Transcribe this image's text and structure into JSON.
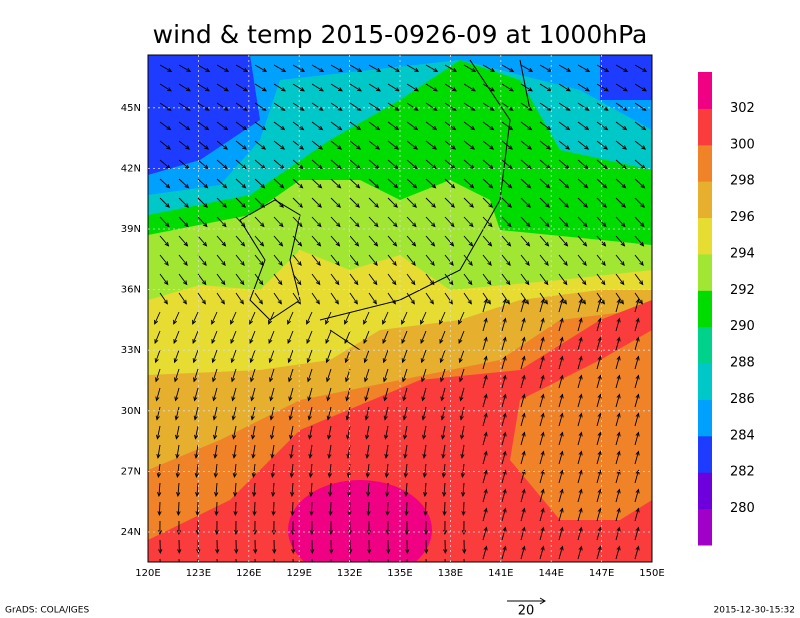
{
  "map": {
    "title": "wind & temp 2015-0926-09 at 1000hPa",
    "xticks": [
      "120E",
      "123E",
      "126E",
      "129E",
      "132E",
      "135E",
      "138E",
      "141E",
      "144E",
      "147E",
      "150E"
    ],
    "yticks": [
      "24N",
      "27N",
      "30N",
      "33N",
      "36N",
      "39N",
      "42N",
      "45N"
    ]
  },
  "colorbar": {
    "levels": [
      280,
      282,
      284,
      286,
      288,
      290,
      292,
      294,
      296,
      298,
      300,
      302
    ],
    "colors": [
      "#a000c8",
      "#6e00dc",
      "#1e3cff",
      "#00a0ff",
      "#00c8c8",
      "#00d28c",
      "#00dc00",
      "#a0e632",
      "#e6dc32",
      "#e6af2d",
      "#f08228",
      "#fa3c3c",
      "#f00082"
    ]
  },
  "vector_reference": "20",
  "footer": {
    "left": "GrADS: COLA/IGES",
    "right": "2015-12-30-15:32"
  }
}
